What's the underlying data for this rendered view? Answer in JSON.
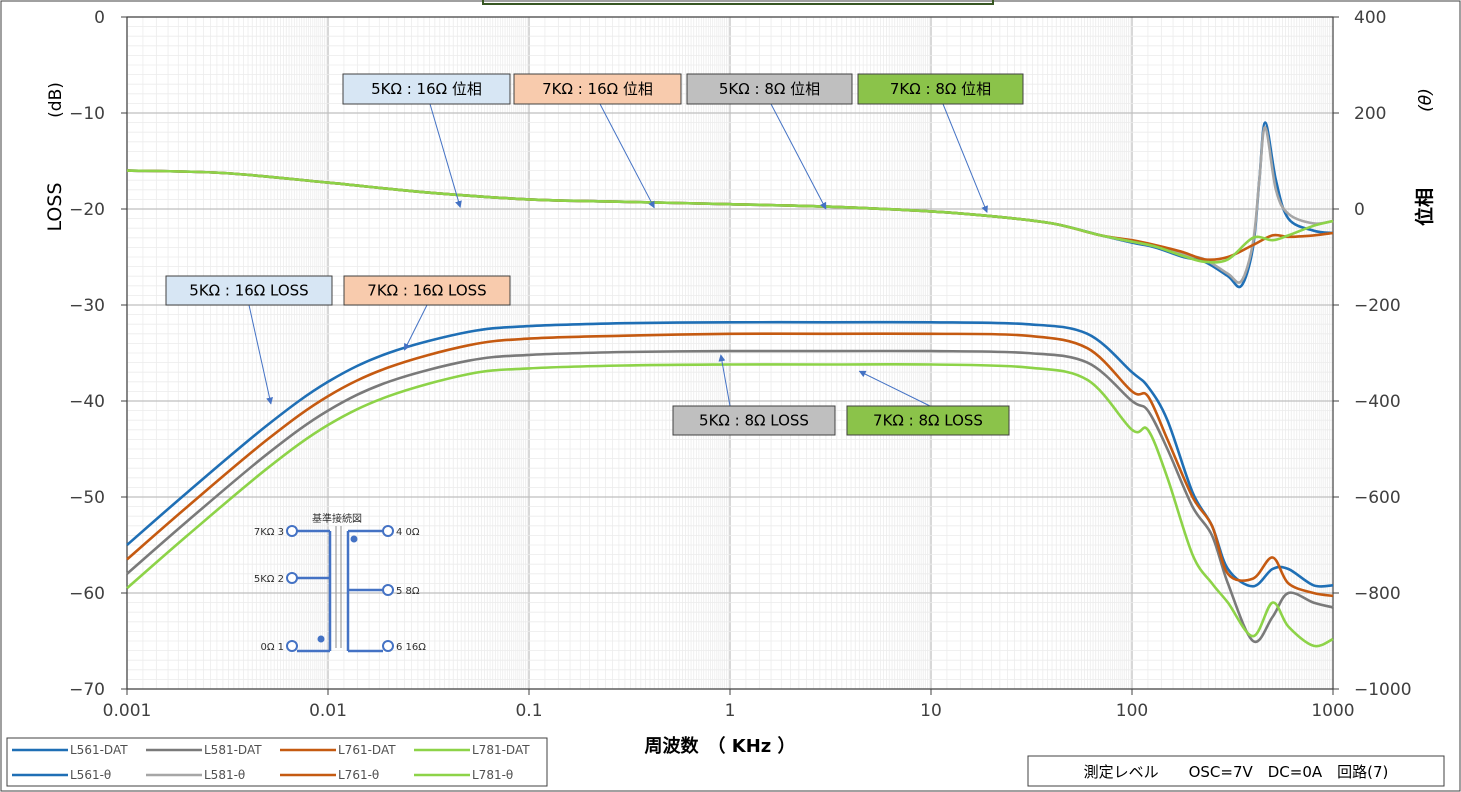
{
  "chart_data": {
    "type": "line",
    "xlabel": "周波数　（ KHz ）",
    "ylabel_left_main": "LOSS",
    "ylabel_left_unit": "(dB)",
    "ylabel_right_main": "位相",
    "ylabel_right_unit": "(θ)",
    "x_scale": "log",
    "xlim": [
      0.001,
      1000
    ],
    "x_ticks": [
      "0.001",
      "0.01",
      "0.1",
      "1",
      "10",
      "100",
      "1000"
    ],
    "ylim_left": [
      -70,
      0
    ],
    "y_ticks_left": [
      "0",
      "−10",
      "−20",
      "−30",
      "−40",
      "−50",
      "−60",
      "−70"
    ],
    "ylim_right": [
      -1000,
      400
    ],
    "y_ticks_right": [
      "400",
      "200",
      "0",
      "−200",
      "−400",
      "−600",
      "−800",
      "−1000"
    ],
    "grid": true,
    "legend_position": "bottom-left",
    "series": [
      {
        "name": "L561-DAT",
        "axis": "left",
        "color": "#1f6fb5",
        "x": [
          0.001,
          0.002,
          0.005,
          0.01,
          0.02,
          0.05,
          0.1,
          0.3,
          1,
          3,
          10,
          30,
          60,
          100,
          120,
          150,
          200,
          250,
          300,
          400,
          500,
          600,
          800,
          1000
        ],
        "y": [
          -55,
          -49.5,
          -42.5,
          -38,
          -35,
          -32.8,
          -32.2,
          -31.9,
          -31.8,
          -31.8,
          -31.8,
          -32,
          -33,
          -37,
          -38.5,
          -42,
          -49.5,
          -53,
          -57.5,
          -59.3,
          -57.5,
          -57.5,
          -59.2,
          -59.2
        ]
      },
      {
        "name": "L581-DAT",
        "axis": "left",
        "color": "#7a7a7a",
        "x": [
          0.001,
          0.002,
          0.005,
          0.01,
          0.02,
          0.05,
          0.1,
          0.3,
          1,
          3,
          10,
          30,
          60,
          100,
          120,
          150,
          200,
          250,
          300,
          400,
          500,
          600,
          800,
          1000
        ],
        "y": [
          -58,
          -52.5,
          -45.5,
          -41,
          -38,
          -35.8,
          -35.2,
          -34.9,
          -34.8,
          -34.8,
          -34.8,
          -35,
          -36,
          -40,
          -41,
          -45,
          -51,
          -54,
          -59,
          -65,
          -62.5,
          -60,
          -61,
          -61.5
        ]
      },
      {
        "name": "L761-DAT",
        "axis": "left",
        "color": "#c55a11",
        "x": [
          0.001,
          0.002,
          0.005,
          0.01,
          0.02,
          0.05,
          0.1,
          0.3,
          1,
          3,
          10,
          30,
          60,
          100,
          120,
          150,
          200,
          250,
          300,
          400,
          500,
          600,
          800,
          1000
        ],
        "y": [
          -56.5,
          -51,
          -44,
          -39.5,
          -36.5,
          -34.2,
          -33.5,
          -33.2,
          -33,
          -33,
          -33,
          -33.2,
          -34.5,
          -39,
          -39.5,
          -44,
          -50,
          -53,
          -58,
          -58.5,
          -56.3,
          -59,
          -60,
          -60.3
        ]
      },
      {
        "name": "L781-DAT",
        "axis": "left",
        "color": "#8dd348",
        "x": [
          0.001,
          0.002,
          0.005,
          0.01,
          0.02,
          0.05,
          0.1,
          0.3,
          1,
          3,
          10,
          30,
          60,
          100,
          120,
          150,
          200,
          250,
          300,
          400,
          500,
          600,
          800,
          1000
        ],
        "y": [
          -59.5,
          -54,
          -47,
          -42.5,
          -39.5,
          -37.2,
          -36.6,
          -36.3,
          -36.2,
          -36.2,
          -36.2,
          -36.5,
          -37.8,
          -43,
          -43,
          -48,
          -56,
          -59,
          -61,
          -64.5,
          -61,
          -63.5,
          -65.5,
          -64.8
        ]
      },
      {
        "name": "L561-θ",
        "axis": "right",
        "color": "#1f6fb5",
        "x": [
          0.001,
          0.003,
          0.01,
          0.03,
          0.1,
          0.3,
          1,
          3,
          10,
          20,
          40,
          70,
          100,
          130,
          180,
          230,
          300,
          350,
          400,
          430,
          460,
          520,
          600,
          800,
          1000
        ],
        "y": [
          80,
          75,
          55,
          35,
          20,
          15,
          10,
          5,
          -5,
          -15,
          -30,
          -55,
          -70,
          -80,
          -100,
          -110,
          -140,
          -160,
          -80,
          60,
          180,
          60,
          -20,
          -45,
          -50
        ]
      },
      {
        "name": "L581-θ",
        "axis": "right",
        "color": "#a6a6a6",
        "x": [
          0.001,
          0.003,
          0.01,
          0.03,
          0.1,
          0.3,
          1,
          3,
          10,
          20,
          40,
          70,
          100,
          130,
          180,
          230,
          300,
          350,
          400,
          430,
          460,
          520,
          600,
          800,
          1000
        ],
        "y": [
          80,
          75,
          55,
          35,
          20,
          15,
          10,
          5,
          -5,
          -15,
          -30,
          -55,
          -68,
          -78,
          -95,
          -105,
          -135,
          -150,
          -70,
          60,
          170,
          40,
          -10,
          -30,
          -25
        ]
      },
      {
        "name": "L761-θ",
        "axis": "right",
        "color": "#c55a11",
        "x": [
          0.001,
          0.003,
          0.01,
          0.03,
          0.1,
          0.3,
          1,
          3,
          10,
          20,
          40,
          70,
          100,
          130,
          180,
          230,
          300,
          400,
          500,
          600,
          800,
          1000
        ],
        "y": [
          80,
          75,
          55,
          35,
          20,
          15,
          10,
          5,
          -5,
          -15,
          -30,
          -55,
          -65,
          -75,
          -90,
          -105,
          -100,
          -75,
          -55,
          -58,
          -55,
          -50
        ]
      },
      {
        "name": "L781-θ",
        "axis": "right",
        "color": "#8dd348",
        "x": [
          0.001,
          0.003,
          0.01,
          0.03,
          0.1,
          0.3,
          1,
          3,
          10,
          20,
          40,
          70,
          100,
          130,
          180,
          230,
          300,
          400,
          500,
          600,
          800,
          1000
        ],
        "y": [
          80,
          75,
          55,
          35,
          20,
          15,
          10,
          5,
          -5,
          -15,
          -30,
          -55,
          -68,
          -78,
          -98,
          -110,
          -105,
          -60,
          -65,
          -55,
          -35,
          -25
        ]
      }
    ]
  },
  "annotations": [
    {
      "text": "5KΩ : 16Ω  位相",
      "bg": "#d7e6f4",
      "tx": 0.0455,
      "ty": 3.5
    },
    {
      "text": "7KΩ : 16Ω  位相",
      "bg": "#f8cbad",
      "tx": 0.42,
      "ty": 2.5
    },
    {
      "text": "5KΩ : 8Ω  位相",
      "bg": "#bfbfbf",
      "tx": 3.0,
      "ty": 0
    },
    {
      "text": "7KΩ : 8Ω  位相",
      "bg": "#8bc34a",
      "tx": 19,
      "ty": -7
    },
    {
      "text": "5KΩ : 16Ω  LOSS",
      "bg": "#d7e6f4",
      "tx": 0.0052,
      "ty": -40.3
    },
    {
      "text": "7KΩ : 16Ω  LOSS",
      "bg": "#f8cbad",
      "tx": 0.024,
      "ty": -34.7
    },
    {
      "text": "5KΩ : 8Ω  LOSS",
      "bg": "#bfbfbf",
      "tx": 0.9,
      "ty": -35.2
    },
    {
      "text": "7KΩ : 8Ω  LOSS",
      "bg": "#8bc34a",
      "tx": 4.4,
      "ty": -36.9
    }
  ],
  "diagram": {
    "title": "基準接続図",
    "left_terminals": [
      "7KΩ 3",
      "5KΩ 2",
      "0Ω 1"
    ],
    "right_terminals": [
      "4 0Ω",
      "5  8Ω",
      "6   16Ω"
    ]
  },
  "info_box": "測定レベル　　OSC=7V　DC=0A　回路(7)"
}
